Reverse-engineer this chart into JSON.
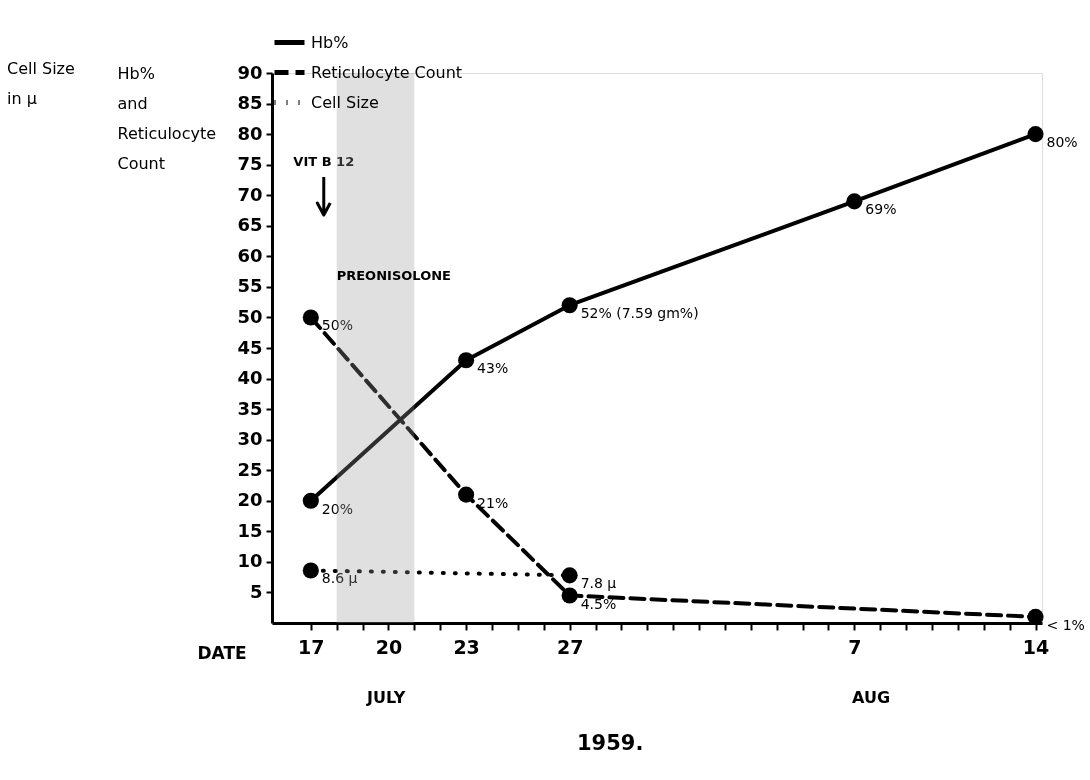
{
  "chart_data": {
    "type": "line",
    "xlabel": "DATE",
    "ylabel": "Hb% and Reticulocyte Count",
    "xlim": [
      "1959-07-15T12:00",
      "1959-08-14T06:00"
    ],
    "xticks": [
      {
        "value": "1959-07-17",
        "label": "17"
      },
      {
        "value": "1959-07-18",
        "label": null
      },
      {
        "value": "1959-07-19",
        "label": null
      },
      {
        "value": "1959-07-20",
        "label": "20"
      },
      {
        "value": "1959-07-21",
        "label": null
      },
      {
        "value": "1959-07-22",
        "label": null
      },
      {
        "value": "1959-07-23",
        "label": "23"
      },
      {
        "value": "1959-07-24",
        "label": null
      },
      {
        "value": "1959-07-25",
        "label": null
      },
      {
        "value": "1959-07-26",
        "label": null
      },
      {
        "value": "1959-07-27",
        "label": "27"
      },
      {
        "value": "1959-07-28",
        "label": null
      },
      {
        "value": "1959-07-29",
        "label": null
      },
      {
        "value": "1959-07-30",
        "label": null
      },
      {
        "value": "1959-07-31",
        "label": null
      },
      {
        "value": "1959-08-01",
        "label": null
      },
      {
        "value": "1959-08-02",
        "label": null
      },
      {
        "value": "1959-08-03",
        "label": null
      },
      {
        "value": "1959-08-04",
        "label": null
      },
      {
        "value": "1959-08-05",
        "label": null
      },
      {
        "value": "1959-08-06",
        "label": null
      },
      {
        "value": "1959-08-07",
        "label": "7"
      },
      {
        "value": "1959-08-08",
        "label": null
      },
      {
        "value": "1959-08-09",
        "label": null
      },
      {
        "value": "1959-08-10",
        "label": null
      },
      {
        "value": "1959-08-11",
        "label": null
      },
      {
        "value": "1959-08-12",
        "label": null
      },
      {
        "value": "1959-08-13",
        "label": null
      },
      {
        "value": "1959-08-14",
        "label": "14"
      }
    ],
    "ylim": [
      0,
      90
    ],
    "yticks": [
      5,
      10,
      15,
      20,
      25,
      30,
      35,
      40,
      45,
      50,
      55,
      60,
      65,
      70,
      75,
      80,
      85,
      90
    ],
    "grid": false,
    "legend": "top",
    "marker": "circle",
    "series": [
      {
        "name": "Hb%",
        "color": "#000000",
        "line_style": "solid",
        "x": [
          "1959-07-17",
          "1959-07-23",
          "1959-07-27",
          "1959-08-07",
          "1959-08-14"
        ],
        "values": [
          20,
          43,
          52,
          69,
          80
        ],
        "value_labels": [
          "20%",
          "43%",
          "52% (7.59 gm%)",
          "69%",
          "80%"
        ]
      },
      {
        "name": "Reticulocyte Count",
        "color": "#000000",
        "line_style": "dashed",
        "x": [
          "1959-07-17",
          "1959-07-23",
          "1959-07-27",
          "1959-08-14"
        ],
        "values": [
          50,
          21,
          4.5,
          1
        ],
        "value_labels": [
          "50%",
          "21%",
          "4.5%",
          "< 1%"
        ]
      },
      {
        "name": "Cell Size",
        "color": "#000000",
        "line_style": "dotted",
        "x": [
          "1959-07-17",
          "1959-07-27"
        ],
        "values": [
          8.6,
          7.8
        ],
        "value_labels": [
          "8.6 μ",
          "7.8 μ"
        ]
      }
    ],
    "ref_lines": [
      {
        "axis": "x",
        "value": "1959-07-17T12:00",
        "label": "VIT B 12"
      }
    ],
    "bands": [
      {
        "axis": "x",
        "from": "1959-07-18",
        "to": "1959-07-21",
        "label": "PREONISOLONE",
        "color": "#999999"
      }
    ],
    "annotations": [
      "Cell Size in μ",
      "JULY",
      "AUG",
      "1959."
    ]
  }
}
